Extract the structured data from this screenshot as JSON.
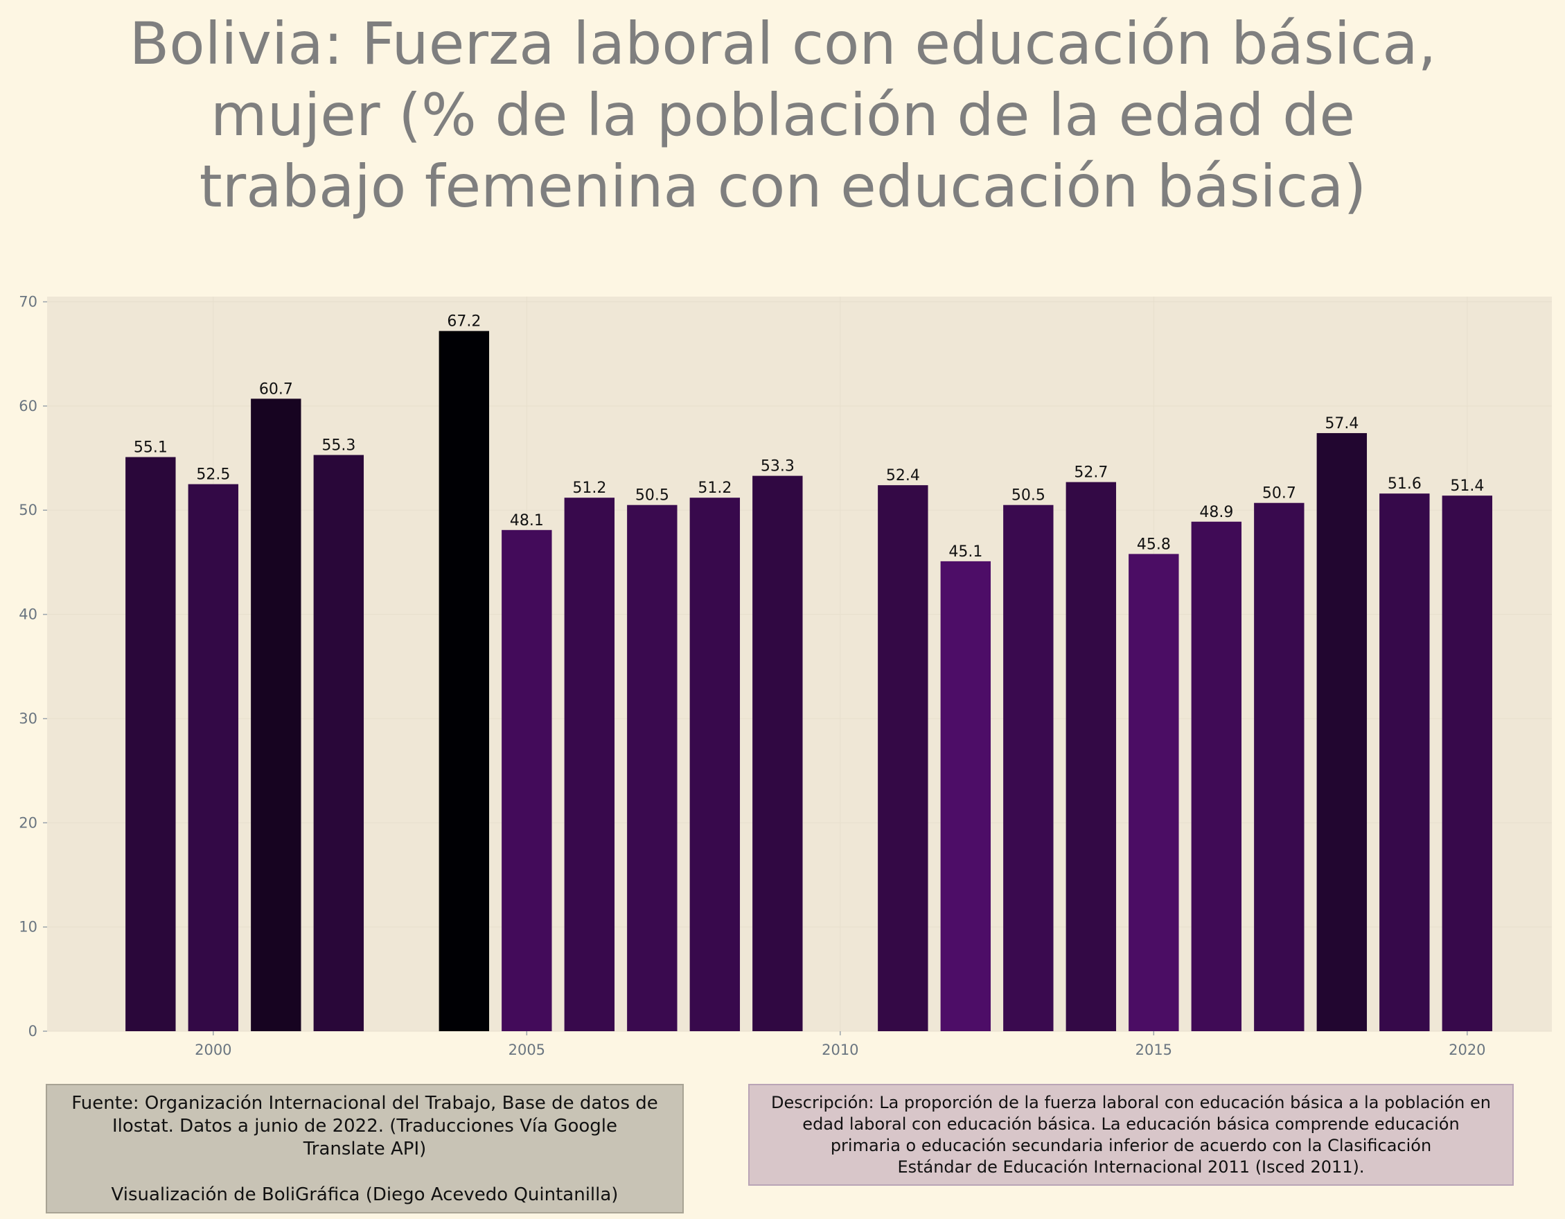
{
  "title_lines": [
    "Bolivia:  Fuerza laboral con educación básica,",
    "mujer (% de la población de la edad de",
    "trabajo femenina con educación básica)"
  ],
  "source_note": {
    "line1": "Fuente: Organización Internacional del Trabajo, Base de datos de",
    "line2": "Ilostat. Datos a junio de 2022. (Traducciones Vía Google",
    "line3": "Translate API)",
    "credit": "Visualización de BoliGráfica (Diego Acevedo Quintanilla)"
  },
  "description_note": {
    "line1": "Descripción: La proporción de la fuerza laboral con educación básica a la población en",
    "line2": "edad laboral con educación básica. La educación básica comprende educación",
    "line3": "primaria o educación secundaria inferior de acuerdo con la Clasificación",
    "line4": "Estándar de Educación Internacional 2011 (Isced 2011)."
  },
  "colors": {
    "background": "#fdf6e3",
    "plot_background": "#efe7d6",
    "title": "#7f7f7f",
    "tick_label": "#6a7580",
    "bar_low": "#4d0d67",
    "bar_high": "#000004",
    "source_box": "#c8c3b5",
    "description_box": "#d8c6c9"
  },
  "chart_data": {
    "type": "bar",
    "x": [
      1999,
      2000,
      2001,
      2002,
      2004,
      2005,
      2006,
      2007,
      2008,
      2009,
      2011,
      2012,
      2013,
      2014,
      2015,
      2016,
      2017,
      2018,
      2019,
      2020
    ],
    "values": [
      55.1,
      52.5,
      60.7,
      55.3,
      67.2,
      48.1,
      51.2,
      50.5,
      51.2,
      53.3,
      52.4,
      45.1,
      50.5,
      52.7,
      45.8,
      48.9,
      50.7,
      57.4,
      51.6,
      51.4
    ],
    "labels": [
      "55.1",
      "52.5",
      "60.7",
      "55.3",
      "67.2",
      "48.1",
      "51.2",
      "50.5",
      "51.2",
      "53.3",
      "52.4",
      "45.1",
      "50.5",
      "52.7",
      "45.8",
      "48.9",
      "50.7",
      "57.4",
      "51.6",
      "51.4"
    ],
    "xticks": [
      2000,
      2005,
      2010,
      2015,
      2020
    ],
    "yticks": [
      0,
      10,
      20,
      30,
      40,
      50,
      60,
      70
    ],
    "xlim": [
      1997.35,
      2021.35
    ],
    "ylim": [
      0,
      70.5
    ],
    "grid": true,
    "xlabel": "",
    "ylabel": ""
  }
}
